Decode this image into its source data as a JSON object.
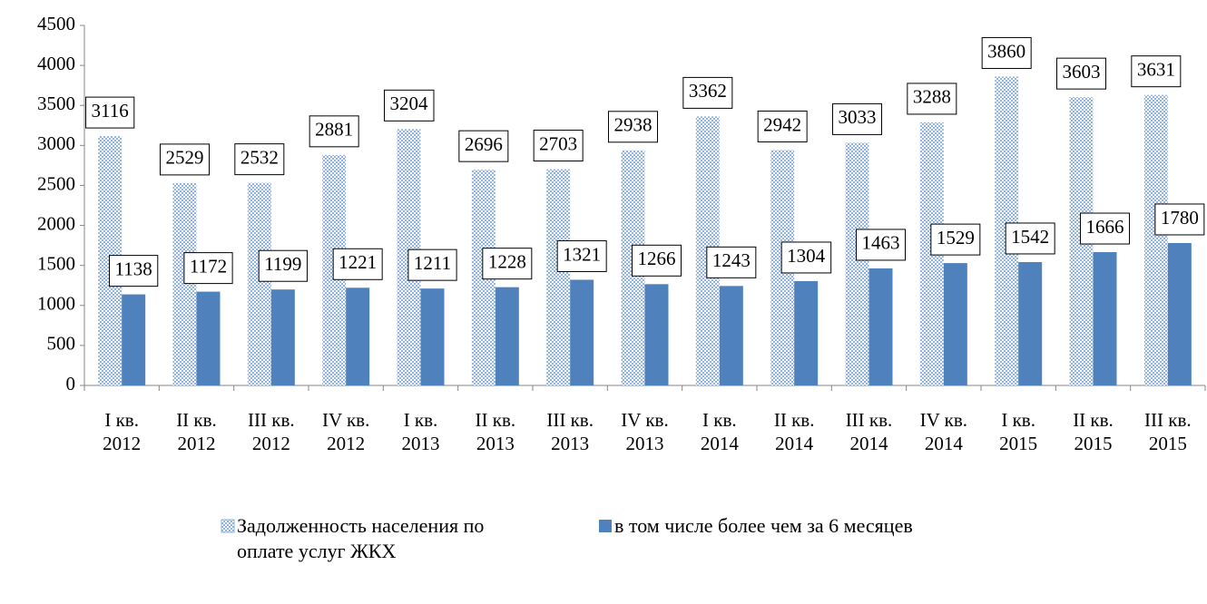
{
  "chart_data": {
    "type": "bar",
    "categories": [
      "I кв.\n2012",
      "II кв.\n2012",
      "III кв.\n2012",
      "IV кв.\n2012",
      "I кв.\n2013",
      "II кв.\n2013",
      "III кв.\n2013",
      "IV кв.\n2013",
      "I кв.\n2014",
      "II кв.\n2014",
      "III кв.\n2014",
      "IV кв.\n2014",
      "I кв.\n2015",
      "II кв.\n2015",
      "III кв.\n2015"
    ],
    "series": [
      {
        "name": "Задолженность населения по оплате услуг ЖКХ",
        "color": "#8db4e2",
        "values": [
          3116,
          2529,
          2532,
          2881,
          3204,
          2696,
          2703,
          2938,
          3362,
          2942,
          3033,
          3288,
          3860,
          3603,
          3631
        ]
      },
      {
        "name": "в том числе более чем за 6 месяцев",
        "color": "#4f81bd",
        "values": [
          1138,
          1172,
          1199,
          1221,
          1211,
          1228,
          1321,
          1266,
          1243,
          1304,
          1463,
          1529,
          1542,
          1666,
          1780
        ]
      }
    ],
    "ylim": [
      0,
      4500
    ],
    "yticks": [
      0,
      500,
      1000,
      1500,
      2000,
      2500,
      3000,
      3500,
      4000,
      4500
    ],
    "grid": false,
    "legend": "bottom"
  }
}
